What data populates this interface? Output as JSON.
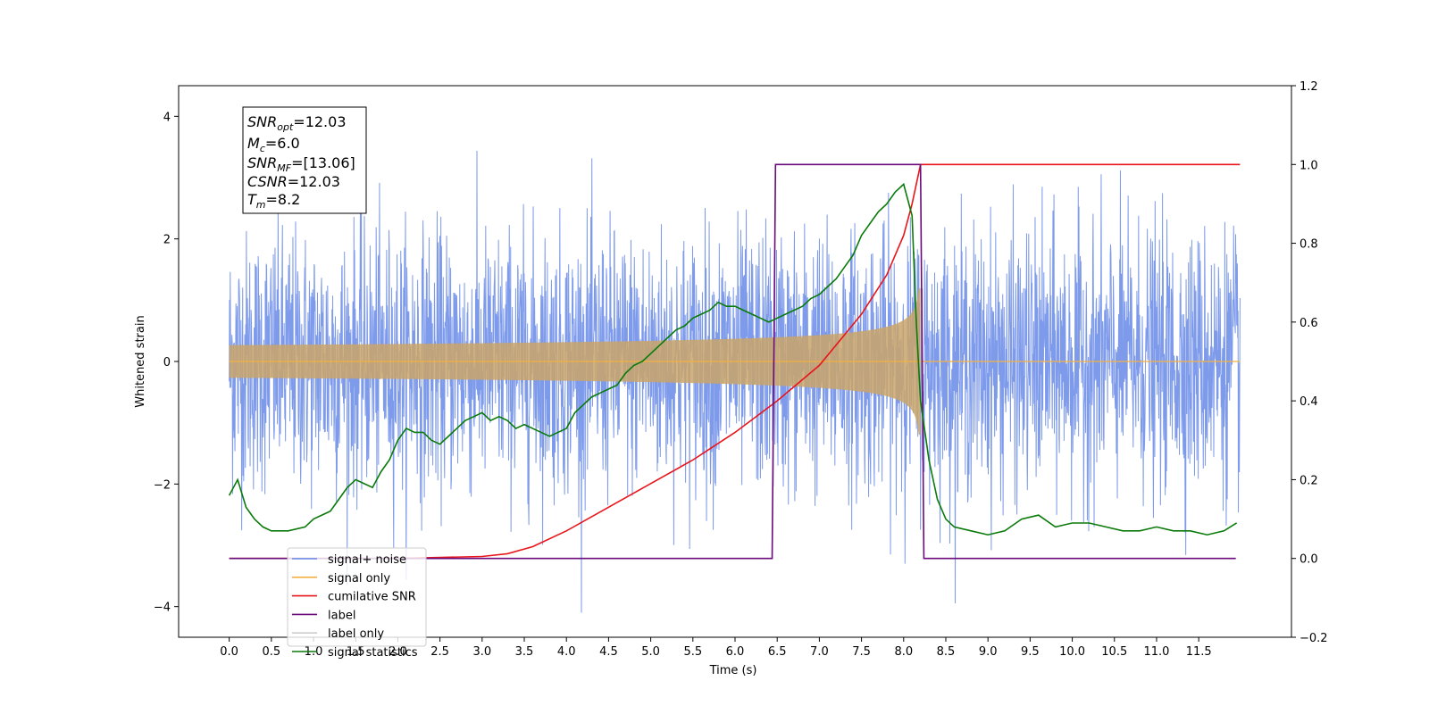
{
  "chart_data": {
    "type": "line",
    "xlabel": "Time (s)",
    "ylabel_left": "Whitened strain",
    "ylabel_right": "",
    "xlim": [
      -0.6,
      12.6
    ],
    "ylim_left": [
      -4.5,
      4.5
    ],
    "ylim_right": [
      -0.2,
      1.2
    ],
    "x_ticks": [
      "0.0",
      "0.5",
      "1.0",
      "1.5",
      "2.0",
      "2.5",
      "3.0",
      "3.5",
      "4.0",
      "4.5",
      "5.0",
      "5.5",
      "6.0",
      "6.5",
      "7.0",
      "7.5",
      "8.0",
      "8.5",
      "9.0",
      "9.5",
      "10.0",
      "10.5",
      "11.0",
      "11.5"
    ],
    "y_ticks_left": [
      "4",
      "2",
      "0",
      "−2",
      "−4"
    ],
    "y_ticks_right": [
      "1.2",
      "1.0",
      "0.8",
      "0.6",
      "0.4",
      "0.2",
      "0.0",
      "−0.2"
    ],
    "grid": false,
    "legend_placement": "lower-left",
    "info_box": {
      "snr_opt_label": "SNR",
      "snr_opt_sub": "opt",
      "snr_opt_value": "=12.03",
      "mc_label": "M",
      "mc_sub": "c",
      "mc_value": "=6.0",
      "snr_mf_label": "SNR",
      "snr_mf_sub": "MF",
      "snr_mf_value": "=[13.06]",
      "csnr_label": "CSNR",
      "csnr_value": "=12.03",
      "tm_label": "T",
      "tm_sub": "m",
      "tm_value": "=8.2"
    },
    "series": [
      {
        "name": "signal+ noise",
        "axis": "left",
        "color": "#6688e8",
        "description_values": {
          "x_range": [
            0.0,
            11.99
          ],
          "amplitude_range": [
            -4.1,
            4.1
          ]
        }
      },
      {
        "name": "signal only",
        "axis": "left",
        "color": "#f5b041",
        "chirp": {
          "start": 0.0,
          "merge_time": 8.2,
          "end": 11.99,
          "peak_amplitude": 1.2
        }
      },
      {
        "name": "cumilative SNR",
        "axis": "right",
        "color": "#e8151b",
        "x": [
          0.0,
          2.0,
          3.0,
          3.3,
          3.6,
          4.0,
          4.5,
          5.0,
          5.5,
          6.0,
          6.5,
          7.0,
          7.5,
          7.8,
          8.0,
          8.1,
          8.2,
          8.5,
          9.0,
          10.0,
          11.0,
          11.99
        ],
        "y": [
          0.0,
          0.0,
          0.005,
          0.012,
          0.03,
          0.07,
          0.13,
          0.19,
          0.25,
          0.32,
          0.4,
          0.49,
          0.62,
          0.72,
          0.82,
          0.9,
          1.0,
          1.0,
          1.0,
          1.0,
          1.0,
          1.0
        ]
      },
      {
        "name": "label",
        "axis": "right",
        "color": "#6a0a7a",
        "x": [
          0.0,
          6.44,
          6.48,
          8.2,
          8.24,
          11.94
        ],
        "y": [
          0.0,
          0.0,
          1.0,
          1.0,
          0.0,
          0.0
        ]
      },
      {
        "name": "label only",
        "axis": "right",
        "color": "#cccccc",
        "x": [],
        "y": []
      },
      {
        "name": "signal statistics",
        "axis": "right",
        "color": "#0a7a0a",
        "x": [
          0.0,
          0.1,
          0.2,
          0.3,
          0.4,
          0.5,
          0.7,
          0.9,
          1.0,
          1.1,
          1.2,
          1.3,
          1.4,
          1.5,
          1.6,
          1.7,
          1.8,
          1.9,
          2.0,
          2.1,
          2.2,
          2.3,
          2.4,
          2.5,
          2.6,
          2.7,
          2.8,
          2.9,
          3.0,
          3.1,
          3.2,
          3.3,
          3.4,
          3.5,
          3.6,
          3.7,
          3.8,
          3.9,
          4.0,
          4.1,
          4.2,
          4.3,
          4.4,
          4.5,
          4.6,
          4.7,
          4.8,
          4.9,
          5.0,
          5.1,
          5.2,
          5.3,
          5.4,
          5.5,
          5.6,
          5.7,
          5.8,
          5.9,
          6.0,
          6.1,
          6.2,
          6.3,
          6.4,
          6.5,
          6.6,
          6.7,
          6.8,
          6.9,
          7.0,
          7.1,
          7.2,
          7.3,
          7.4,
          7.5,
          7.6,
          7.7,
          7.8,
          7.9,
          8.0,
          8.1,
          8.15,
          8.2,
          8.3,
          8.4,
          8.5,
          8.6,
          8.8,
          9.0,
          9.2,
          9.4,
          9.6,
          9.8,
          10.0,
          10.2,
          10.4,
          10.6,
          10.8,
          11.0,
          11.2,
          11.4,
          11.6,
          11.8,
          11.95
        ],
        "y": [
          0.16,
          0.2,
          0.13,
          0.1,
          0.08,
          0.07,
          0.07,
          0.08,
          0.1,
          0.11,
          0.12,
          0.15,
          0.18,
          0.2,
          0.19,
          0.18,
          0.22,
          0.25,
          0.3,
          0.33,
          0.32,
          0.32,
          0.3,
          0.29,
          0.31,
          0.33,
          0.35,
          0.36,
          0.37,
          0.35,
          0.36,
          0.35,
          0.33,
          0.34,
          0.33,
          0.32,
          0.31,
          0.32,
          0.33,
          0.37,
          0.39,
          0.41,
          0.42,
          0.43,
          0.44,
          0.47,
          0.49,
          0.5,
          0.52,
          0.54,
          0.56,
          0.58,
          0.59,
          0.61,
          0.62,
          0.63,
          0.65,
          0.64,
          0.64,
          0.63,
          0.62,
          0.61,
          0.6,
          0.61,
          0.62,
          0.63,
          0.64,
          0.66,
          0.67,
          0.69,
          0.71,
          0.74,
          0.77,
          0.82,
          0.85,
          0.88,
          0.9,
          0.93,
          0.95,
          0.87,
          0.6,
          0.4,
          0.25,
          0.15,
          0.1,
          0.08,
          0.07,
          0.06,
          0.07,
          0.1,
          0.11,
          0.08,
          0.09,
          0.09,
          0.08,
          0.07,
          0.07,
          0.08,
          0.07,
          0.07,
          0.06,
          0.07,
          0.09
        ]
      }
    ]
  }
}
